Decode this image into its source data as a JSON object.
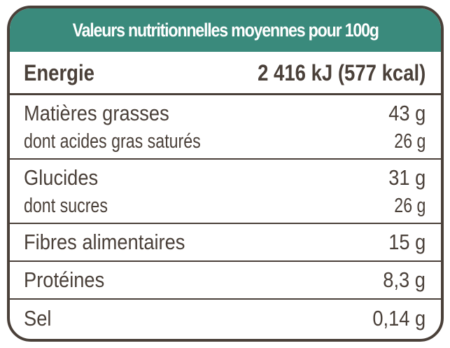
{
  "table": {
    "title": "Valeurs nutritionnelles moyennes pour 100g",
    "energy": {
      "label": "Energie",
      "value": "2 416 kJ (577 kcal)"
    },
    "rows": [
      {
        "label": "Matières grasses",
        "value": "43 g",
        "sub": {
          "label": "dont acides gras saturés",
          "value": "26 g"
        }
      },
      {
        "label": "Glucides",
        "value": "31 g",
        "sub": {
          "label": "dont sucres",
          "value": "26 g"
        }
      },
      {
        "label": "Fibres alimentaires",
        "value": "15 g"
      },
      {
        "label": "Protéines",
        "value": "8,3 g"
      },
      {
        "label": "Sel",
        "value": "0,14 g"
      }
    ]
  },
  "colors": {
    "header_bg": "#3a8a7c",
    "border": "#4a4039",
    "text": "#4a4039",
    "header_text": "#ffffff"
  }
}
